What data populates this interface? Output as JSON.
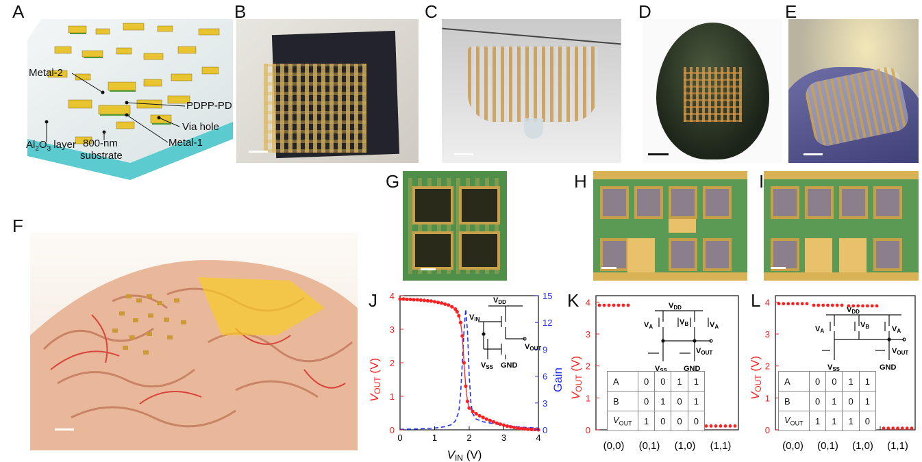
{
  "panels": {
    "A": "A",
    "B": "B",
    "C": "C",
    "D": "D",
    "E": "E",
    "F": "F",
    "G": "G",
    "H": "H",
    "I": "I",
    "J": "J",
    "K": "K",
    "L": "L"
  },
  "schematic": {
    "metal2": "Metal-2",
    "pdpp": "PDPP-PD",
    "via": "Via hole",
    "metal1": "Metal-1",
    "al2o3_prefix": "Al",
    "al2o3_sub1": "2",
    "al2o3_mid": "O",
    "al2o3_sub2": "3",
    "al2o3_suffix": " layer",
    "substrate_line1": "800-nm",
    "substrate_line2": "substrate"
  },
  "colors": {
    "red": "#ff1f1f",
    "blue": "#1f2fff",
    "gold": "#e7c64a",
    "green": "#4f8f4a"
  },
  "chart_J": {
    "type": "line",
    "xlabel_main": "V",
    "xlabel_sub": "IN",
    "xlabel_unit": " (V)",
    "ylabel_main": "V",
    "ylabel_sub": "OUT",
    "ylabel_unit": " (V)",
    "y2label": "Gain",
    "x_ticks": [
      "0",
      "1",
      "2",
      "3",
      "4"
    ],
    "y_ticks": [
      "0",
      "1",
      "2",
      "3",
      "4"
    ],
    "y2_ticks": [
      "0",
      "3",
      "6",
      "9",
      "12",
      "15"
    ],
    "xlim": [
      0,
      4
    ],
    "ylim": [
      0,
      4
    ],
    "y2lim": [
      0,
      15
    ],
    "chart_data": {
      "type": "line",
      "series": [
        {
          "name": "V_OUT",
          "x": [
            0,
            0.1,
            0.2,
            0.3,
            0.4,
            0.5,
            0.6,
            0.7,
            0.8,
            0.9,
            1.0,
            1.1,
            1.2,
            1.3,
            1.4,
            1.5,
            1.6,
            1.65,
            1.7,
            1.75,
            1.8,
            1.85,
            1.9,
            1.95,
            2.0,
            2.1,
            2.2,
            2.3,
            2.4,
            2.5,
            2.6,
            2.7,
            2.8,
            2.9,
            3.0,
            3.1,
            3.2,
            3.3,
            3.4,
            3.5,
            3.6,
            3.7,
            3.8,
            3.9,
            4.0
          ],
          "y": [
            3.9,
            3.9,
            3.89,
            3.89,
            3.88,
            3.88,
            3.87,
            3.86,
            3.85,
            3.84,
            3.82,
            3.8,
            3.78,
            3.75,
            3.72,
            3.67,
            3.6,
            3.52,
            3.4,
            3.2,
            2.8,
            2.0,
            1.3,
            0.85,
            0.65,
            0.55,
            0.48,
            0.42,
            0.37,
            0.32,
            0.28,
            0.24,
            0.2,
            0.17,
            0.14,
            0.11,
            0.09,
            0.07,
            0.05,
            0.04,
            0.03,
            0.02,
            0.01,
            0.01,
            0.0
          ]
        },
        {
          "name": "Gain",
          "x": [
            0,
            0.5,
            1.0,
            1.3,
            1.5,
            1.6,
            1.7,
            1.75,
            1.8,
            1.85,
            1.9,
            1.95,
            2.0,
            2.05,
            2.1,
            2.2,
            2.4,
            2.7,
            3.0,
            3.5,
            4.0
          ],
          "y": [
            0.05,
            0.1,
            0.2,
            0.35,
            0.6,
            1.0,
            2.0,
            4.0,
            7.5,
            11.0,
            13.5,
            11.0,
            6.0,
            3.0,
            1.8,
            1.2,
            0.9,
            0.7,
            0.5,
            0.3,
            0.2
          ]
        }
      ]
    }
  },
  "chart_K": {
    "ylabel_main": "V",
    "ylabel_sub": "OUT",
    "ylabel_unit": " (V)",
    "categories": [
      "(0,0)",
      "(0,1)",
      "(1,0)",
      "(1,1)"
    ],
    "y_ticks": [
      "0",
      "1",
      "2",
      "3",
      "4"
    ],
    "truth_table": {
      "rowA": [
        "A",
        "0",
        "0",
        "1",
        "1"
      ],
      "rowB": [
        "B",
        "0",
        "1",
        "0",
        "1"
      ],
      "rowOut_main": "V",
      "rowOut_sub": "OUT",
      "rowOut": [
        "1",
        "0",
        "0",
        "0"
      ]
    },
    "circuit": {
      "vdd": "V",
      "vdd_sub": "DD",
      "va": "V",
      "va_sub": "A",
      "vb": "V",
      "vb_sub": "B",
      "vss": "V",
      "vss_sub": "SS",
      "vout": "V",
      "vout_sub": "OUT",
      "gnd": "GND"
    },
    "chart_data": {
      "type": "scatter",
      "levels": [
        3.9,
        0.05,
        0.1,
        0.12
      ],
      "description": "NOR gate output per input pair"
    }
  },
  "chart_L": {
    "ylabel_main": "V",
    "ylabel_sub": "OUT",
    "ylabel_unit": " (V)",
    "categories": [
      "(0,0)",
      "(0,1)",
      "(1,0)",
      "(1,1)"
    ],
    "y_ticks": [
      "0",
      "1",
      "2",
      "3",
      "4"
    ],
    "truth_table": {
      "rowA": [
        "A",
        "0",
        "0",
        "1",
        "1"
      ],
      "rowB": [
        "B",
        "0",
        "1",
        "0",
        "1"
      ],
      "rowOut_main": "V",
      "rowOut_sub": "OUT",
      "rowOut": [
        "1",
        "1",
        "1",
        "0"
      ]
    },
    "circuit": {
      "vdd": "V",
      "vdd_sub": "DD",
      "va": "V",
      "va_sub": "A",
      "vb": "V",
      "vb_sub": "B",
      "vss": "V",
      "vss_sub": "SS",
      "vout": "V",
      "vout_sub": "OUT",
      "gnd": "GND"
    },
    "chart_data": {
      "type": "scatter",
      "levels": [
        3.95,
        3.9,
        3.88,
        0.05
      ],
      "description": "NAND gate output per input pair"
    }
  }
}
